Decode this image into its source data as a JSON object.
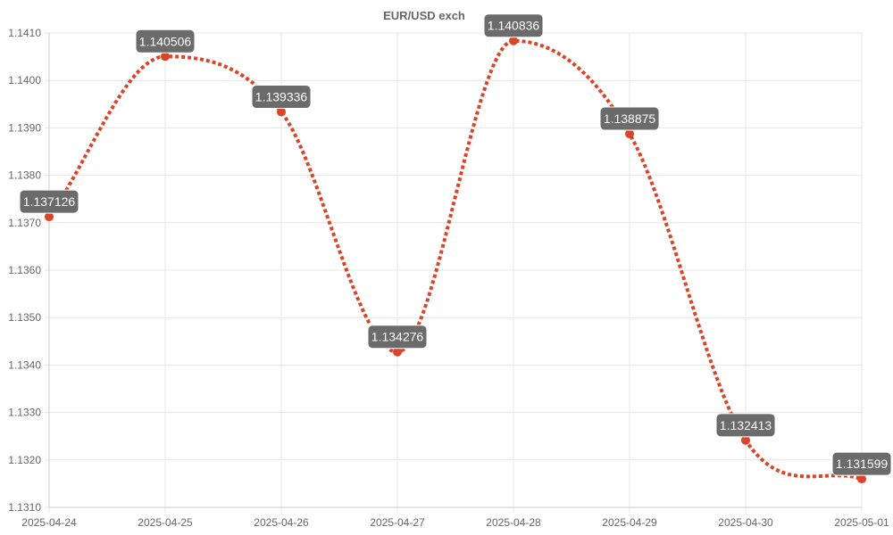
{
  "chart_data": {
    "type": "line",
    "title": "🇪🇺 EUR/USD 🇺🇸 exchange rate",
    "title_visible": "EUR/USD exch",
    "categories": [
      "2025-04-24",
      "2025-04-25",
      "2025-04-26",
      "2025-04-27",
      "2025-04-28",
      "2025-04-29",
      "2025-04-30",
      "2025-05-01"
    ],
    "series": [
      {
        "values": [
          1.137126,
          1.140506,
          1.139336,
          1.134276,
          1.140836,
          1.138875,
          1.132413,
          1.131599
        ],
        "labels": [
          "1.137126",
          "1.140506",
          "1.139336",
          "1.134276",
          "1.140836",
          "1.138875",
          "1.132413",
          "1.131599"
        ],
        "color": "#d9452b",
        "line_style": "dotted"
      }
    ],
    "ylim": [
      1.131,
      1.141
    ],
    "yticks": [
      "1.1410",
      "1.1400",
      "1.1390",
      "1.1380",
      "1.1370",
      "1.1360",
      "1.1350",
      "1.1340",
      "1.1330",
      "1.1320",
      "1.1310"
    ],
    "ytick_values": [
      1.141,
      1.14,
      1.139,
      1.138,
      1.137,
      1.136,
      1.135,
      1.134,
      1.133,
      1.132,
      1.131
    ],
    "grid": true,
    "legend": "none",
    "data_label_bg": "#6b6b6b",
    "grid_color": "#e5e5e5"
  }
}
